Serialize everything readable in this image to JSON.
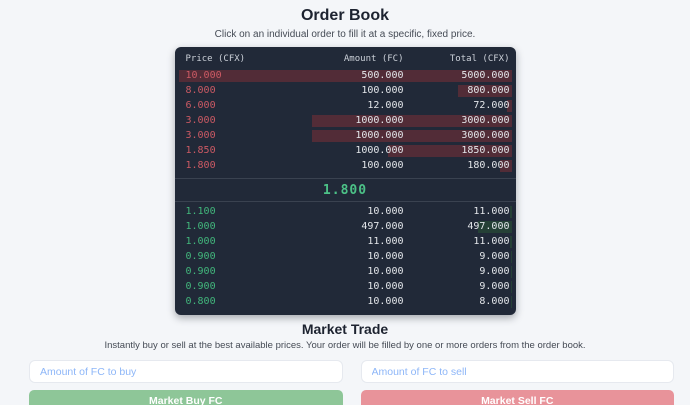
{
  "order_book": {
    "title": "Order Book",
    "subtitle": "Click on an individual order to fill it at a specific, fixed price.",
    "columns": [
      "Price (CFX)",
      "Amount (FC)",
      "Total (CFX)"
    ],
    "mid_price": "1.800",
    "sell_orders": [
      {
        "price": "10.000",
        "amount": "500.000",
        "total": "5000.000",
        "depth_pct": 100
      },
      {
        "price": "8.000",
        "amount": "100.000",
        "total": "800.000",
        "depth_pct": 16
      },
      {
        "price": "6.000",
        "amount": "12.000",
        "total": "72.000",
        "depth_pct": 1.5
      },
      {
        "price": "3.000",
        "amount": "1000.000",
        "total": "3000.000",
        "depth_pct": 60
      },
      {
        "price": "3.000",
        "amount": "1000.000",
        "total": "3000.000",
        "depth_pct": 60
      },
      {
        "price": "1.850",
        "amount": "1000.000",
        "total": "1850.000",
        "depth_pct": 37
      },
      {
        "price": "1.800",
        "amount": "100.000",
        "total": "180.000",
        "depth_pct": 3.6
      }
    ],
    "buy_orders": [
      {
        "price": "1.100",
        "amount": "10.000",
        "total": "11.000",
        "depth_pct": 0.4
      },
      {
        "price": "1.000",
        "amount": "497.000",
        "total": "497.000",
        "depth_pct": 10
      },
      {
        "price": "1.000",
        "amount": "11.000",
        "total": "11.000",
        "depth_pct": 0.4
      },
      {
        "price": "0.900",
        "amount": "10.000",
        "total": "9.000",
        "depth_pct": 0.3
      },
      {
        "price": "0.900",
        "amount": "10.000",
        "total": "9.000",
        "depth_pct": 0.3
      },
      {
        "price": "0.900",
        "amount": "10.000",
        "total": "9.000",
        "depth_pct": 0.3
      },
      {
        "price": "0.800",
        "amount": "10.000",
        "total": "8.000",
        "depth_pct": 0.3
      }
    ]
  },
  "market_trade": {
    "title": "Market Trade",
    "subtitle": "Instantly buy or sell at the best available prices. Your order will be filled by one or more orders from the order book.",
    "buy_input_placeholder": "Amount of FC to buy",
    "sell_input_placeholder": "Amount of FC to sell",
    "buy_button_label": "Market Buy FC",
    "sell_button_label": "Market Sell FC"
  },
  "colors": {
    "sell_text": "#cc5a64",
    "buy_text": "#42b77c",
    "mid_text": "#4cc187",
    "sell_depth_bar": "#522c37",
    "buy_depth_bar": "#254036",
    "buy_button": "#8ec698",
    "sell_button": "#e8939a",
    "table_bg": "#212938",
    "placeholder_blue": "#8db6f8",
    "page_bg": "#f4f6f9"
  }
}
